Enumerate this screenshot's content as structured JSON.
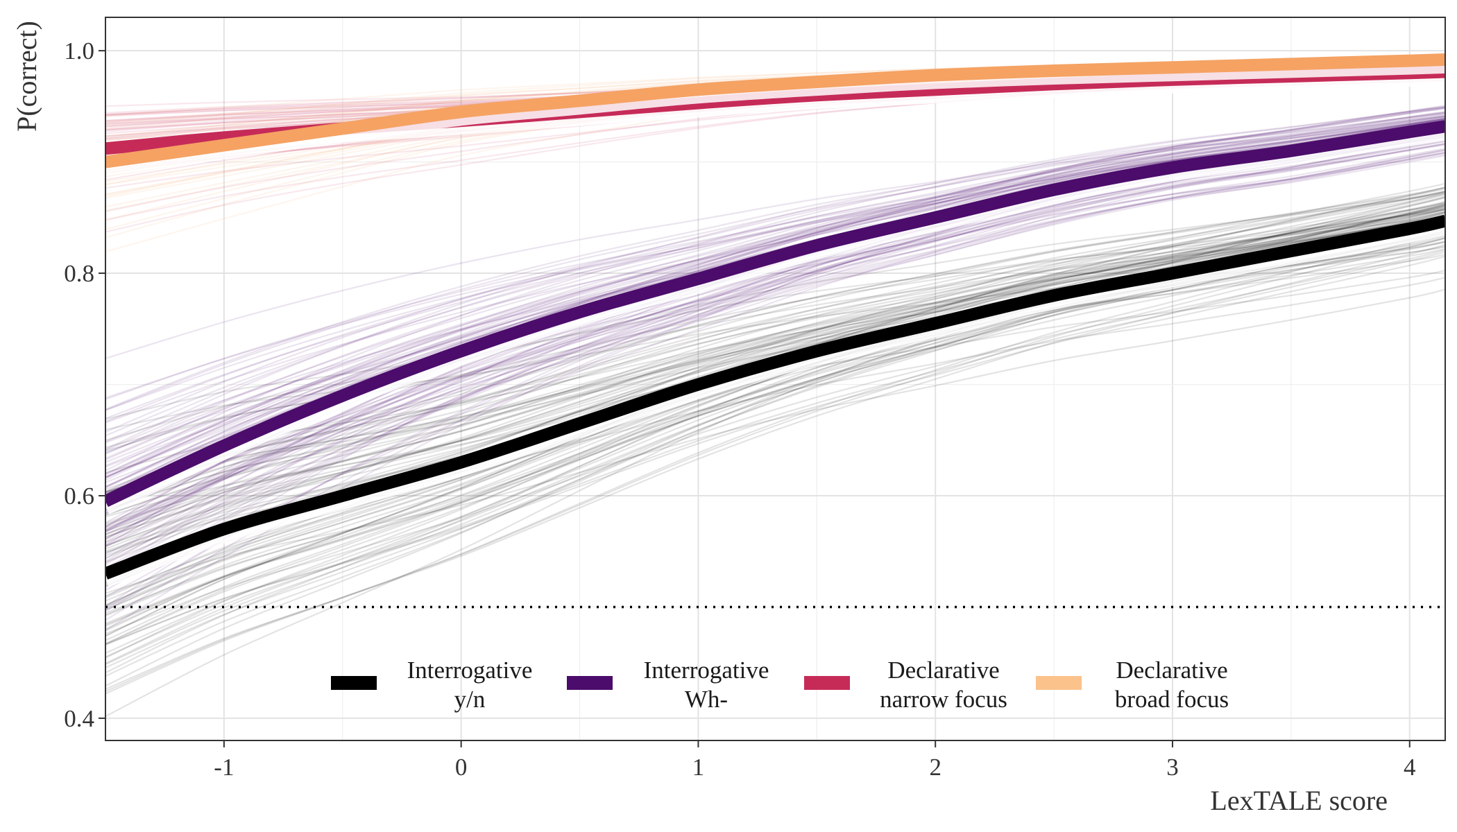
{
  "chart_data": {
    "type": "line",
    "xlabel": "LexTALE score",
    "ylabel": "P(correct)",
    "xlim": [
      -1.5,
      4.15
    ],
    "ylim": [
      0.38,
      1.03
    ],
    "x_ticks": [
      -1,
      0,
      1,
      2,
      3,
      4
    ],
    "x_tick_labels": [
      "-1",
      "0",
      "1",
      "2",
      "3",
      "4"
    ],
    "y_ticks": [
      0.4,
      0.6,
      0.8,
      1.0
    ],
    "y_tick_labels": [
      "0.4",
      "0.6",
      "0.8",
      "1.0"
    ],
    "grid": true,
    "reference_line": {
      "y": 0.5,
      "style": "dotted"
    },
    "x": [
      -1.5,
      -1.0,
      -0.5,
      0.0,
      0.5,
      1.0,
      1.5,
      2.0,
      2.5,
      3.0,
      3.5,
      4.0,
      4.15
    ],
    "series": [
      {
        "key": "interrogative-yn",
        "legend_lines": [
          "Interrogative",
          "y/n"
        ],
        "color": "#000000",
        "values": [
          0.53,
          0.57,
          0.6,
          0.63,
          0.665,
          0.7,
          0.73,
          0.755,
          0.78,
          0.8,
          0.82,
          0.84,
          0.847
        ],
        "draw_spread": 0.055,
        "draw_count": 90
      },
      {
        "key": "interrogative-wh",
        "legend_lines": [
          "Interrogative",
          "Wh-"
        ],
        "color": "#4b0c6b",
        "values": [
          0.595,
          0.645,
          0.69,
          0.73,
          0.765,
          0.795,
          0.825,
          0.85,
          0.875,
          0.895,
          0.91,
          0.927,
          0.932
        ],
        "draw_spread": 0.055,
        "draw_count": 90
      },
      {
        "key": "declarative-narrow",
        "legend_lines": [
          "Declarative",
          "narrow focus"
        ],
        "color": "#c62b58",
        "values": [
          0.912,
          0.922,
          0.93,
          0.937,
          0.945,
          0.953,
          0.96,
          0.965,
          0.97,
          0.974,
          0.977,
          0.98,
          0.981
        ],
        "draw_spread": 0.025,
        "draw_count": 60
      },
      {
        "key": "declarative-broad",
        "legend_lines": [
          "Declarative",
          "broad focus"
        ],
        "color": "#f5a263",
        "legend_color": "#fbc28c",
        "values": [
          0.9,
          0.915,
          0.93,
          0.945,
          0.955,
          0.965,
          0.972,
          0.978,
          0.982,
          0.985,
          0.988,
          0.991,
          0.992
        ],
        "draw_spread": 0.028,
        "draw_count": 50
      }
    ]
  }
}
